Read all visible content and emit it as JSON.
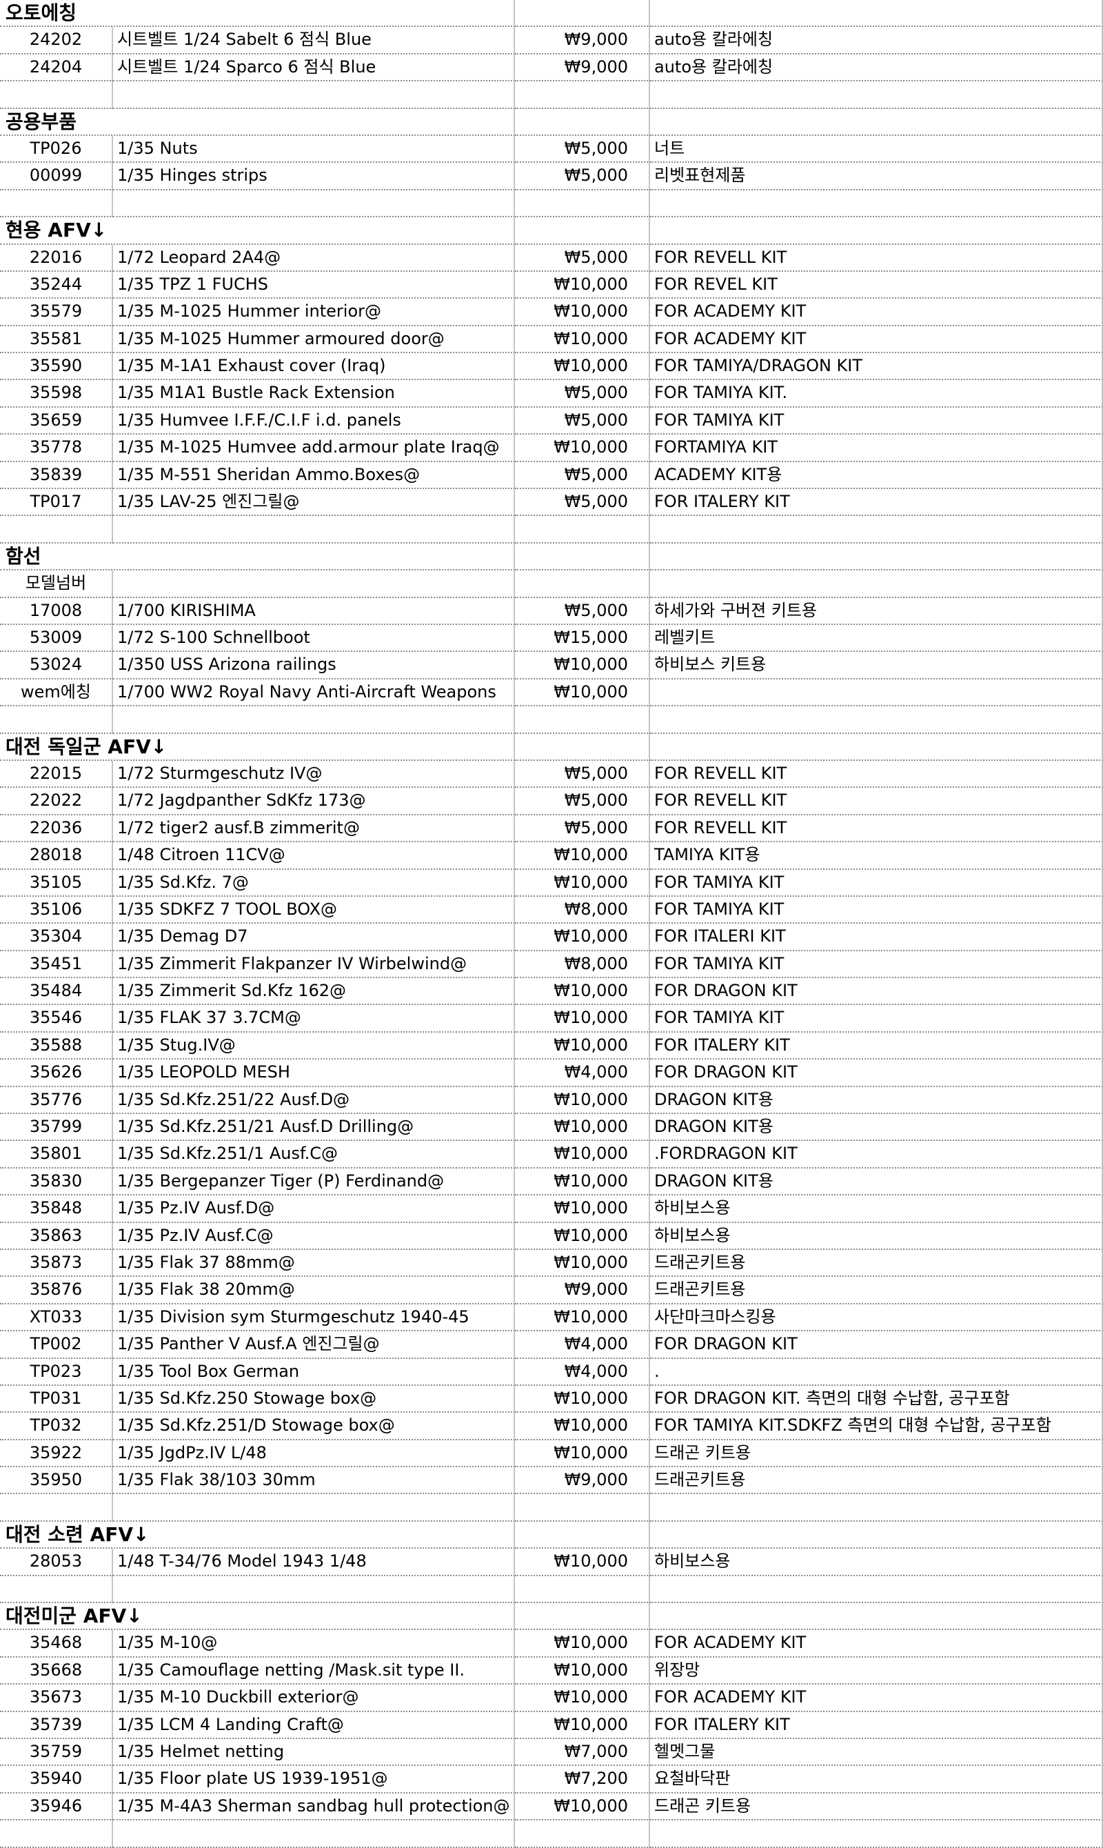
{
  "sections": [
    {
      "title": "오토에칭",
      "items": [
        [
          "24202",
          "시트벨트 1/24 Sabelt 6 점식 Blue",
          "₩9,000",
          "auto용 칼라에칭"
        ],
        [
          "24204",
          "시트벨트 1/24 Sparco 6 점식 Blue",
          "₩9,000",
          "auto용 칼라에칭"
        ]
      ]
    },
    {
      "title": "공용부품",
      "items": [
        [
          "TP026",
          "1/35 Nuts",
          "₩5,000",
          "너트"
        ],
        [
          "00099",
          "1/35 Hinges strips",
          "₩5,000",
          "리벳표현제품"
        ]
      ]
    },
    {
      "title": "현용 AFV↓",
      "items": [
        [
          "22016",
          "1/72 Leopard 2A4@",
          "₩5,000",
          "FOR REVELL KIT"
        ],
        [
          "35244",
          "1/35 TPZ 1 FUCHS",
          "₩10,000",
          "FOR REVEL KIT"
        ],
        [
          "35579",
          "1/35 M-1025 Hummer interior@",
          "₩10,000",
          "FOR ACADEMY KIT"
        ],
        [
          "35581",
          "1/35 M-1025 Hummer armoured door@",
          "₩10,000",
          "FOR ACADEMY KIT"
        ],
        [
          "35590",
          "1/35 M-1A1 Exhaust cover (Iraq)",
          "₩10,000",
          "FOR TAMIYA/DRAGON KIT"
        ],
        [
          "35598",
          "1/35 M1A1 Bustle Rack Extension",
          "₩5,000",
          "FOR TAMIYA KIT."
        ],
        [
          "35659",
          "1/35 Humvee I.F.F./C.I.F i.d. panels",
          "₩5,000",
          "FOR TAMIYA KIT"
        ],
        [
          "35778",
          "1/35 M-1025 Humvee add.armour plate Iraq@",
          "₩10,000",
          "FORTAMIYA KIT"
        ],
        [
          "35839",
          "1/35 M-551 Sheridan Ammo.Boxes@",
          "₩5,000",
          "ACADEMY KIT용"
        ],
        [
          "TP017",
          "1/35 LAV-25 엔진그릴@",
          "₩5,000",
          "FOR ITALERY KIT"
        ]
      ]
    },
    {
      "title": "함선",
      "subtitle": "모델넘버",
      "items": [
        [
          "17008",
          "1/700 KIRISHIMA",
          "₩5,000",
          "하세가와 구버젼 키트용"
        ],
        [
          "53009",
          "1/72 S-100 Schnellboot",
          "₩15,000",
          "레벨키트"
        ],
        [
          "53024",
          "1/350 USS Arizona railings",
          "₩10,000",
          "하비보스 키트용"
        ],
        [
          "wem에칭",
          "1/700 WW2 Royal Navy Anti-Aircraft Weapons",
          "₩10,000"
        ]
      ]
    },
    {
      "title": "대전 독일군 AFV↓",
      "items": [
        [
          "22015",
          "1/72 Sturmgeschutz IV@",
          "₩5,000",
          "FOR REVELL KIT"
        ],
        [
          "22022",
          "1/72 Jagdpanther SdKfz 173@",
          "₩5,000",
          "FOR REVELL KIT"
        ],
        [
          "22036",
          "1/72 tiger2 ausf.B zimmerit@",
          "₩5,000",
          "FOR REVELL KIT"
        ],
        [
          "28018",
          "1/48 Citroen 11CV@",
          "₩10,000",
          "TAMIYA KIT용"
        ],
        [
          "35105",
          "1/35 Sd.Kfz. 7@",
          "₩10,000",
          "FOR TAMIYA KIT"
        ],
        [
          "35106",
          "1/35 SDKFZ 7 TOOL BOX@",
          "₩8,000",
          "FOR TAMIYA KIT"
        ],
        [
          "35304",
          "1/35 Demag D7",
          "₩10,000",
          "FOR ITALERI KIT"
        ],
        [
          "35451",
          "1/35 Zimmerit Flakpanzer IV Wirbelwind@",
          "₩8,000",
          "FOR TAMIYA KIT"
        ],
        [
          "35484",
          "1/35 Zimmerit Sd.Kfz 162@",
          "₩10,000",
          "FOR DRAGON KIT"
        ],
        [
          "35546",
          "1/35 FLAK 37 3.7CM@",
          "₩10,000",
          "FOR TAMIYA KIT"
        ],
        [
          "35588",
          "1/35 Stug.IV@",
          "₩10,000",
          "FOR ITALERY KIT"
        ],
        [
          "35626",
          "1/35 LEOPOLD MESH",
          "₩4,000",
          "FOR DRAGON KIT"
        ],
        [
          "35776",
          "1/35 Sd.Kfz.251/22 Ausf.D@",
          "₩10,000",
          "DRAGON KIT용"
        ],
        [
          "35799",
          "1/35 Sd.Kfz.251/21 Ausf.D Drilling@",
          "₩10,000",
          "DRAGON KIT용"
        ],
        [
          "35801",
          "1/35 Sd.Kfz.251/1 Ausf.C@",
          "₩10,000",
          ".FORDRAGON KIT"
        ],
        [
          "35830",
          "1/35 Bergepanzer Tiger (P) Ferdinand@",
          "₩10,000",
          "DRAGON KIT용"
        ],
        [
          "35848",
          "1/35 Pz.IV Ausf.D@",
          "₩10,000",
          "하비보스용"
        ],
        [
          "35863",
          "1/35 Pz.IV Ausf.C@",
          "₩10,000",
          "하비보스용"
        ],
        [
          "35873",
          "1/35 Flak 37 88mm@",
          "₩10,000",
          "드래곤키트용"
        ],
        [
          "35876",
          "1/35 Flak 38 20mm@",
          "₩9,000",
          "드래곤키트용"
        ],
        [
          "XT033",
          "1/35 Division sym Sturmgeschutz 1940-45",
          "₩10,000",
          "사단마크마스킹용"
        ],
        [
          "TP002",
          "1/35 Panther V Ausf.A 엔진그릴@",
          "₩4,000",
          "FOR DRAGON KIT"
        ],
        [
          "TP023",
          "1/35 Tool Box German",
          "₩4,000",
          "."
        ],
        [
          "TP031",
          "1/35 Sd.Kfz.250 Stowage box@",
          "₩10,000",
          "FOR DRAGON KIT. 측면의 대형 수납함, 공구포함"
        ],
        [
          "TP032",
          "1/35 Sd.Kfz.251/D Stowage box@",
          "₩10,000",
          "FOR TAMIYA KIT.SDKFZ 측면의 대형 수납함, 공구포함"
        ],
        [
          "35922",
          "1/35 JgdPz.IV L/48",
          "₩10,000",
          "드래곤 키트용"
        ],
        [
          "35950",
          "1/35 Flak 38/103 30mm",
          "₩9,000",
          "드래곤키트용"
        ]
      ]
    },
    {
      "title": "대전 소련 AFV↓",
      "items": [
        [
          "28053",
          "1/48 T-34/76 Model 1943  1/48",
          "₩10,000",
          "하비보스용"
        ]
      ]
    },
    {
      "title": "대전미군 AFV↓",
      "items": [
        [
          "35468",
          "1/35 M-10@",
          "₩10,000",
          "FOR ACADEMY KIT"
        ],
        [
          "35668",
          "1/35 Camouflage netting /Mask.sit type II.",
          "₩10,000",
          "위장망"
        ],
        [
          "35673",
          "1/35 M-10 Duckbill exterior@",
          "₩10,000",
          "FOR ACADEMY KIT"
        ],
        [
          "35739",
          "1/35 LCM 4 Landing Craft@",
          "₩10,000",
          "FOR ITALERY KIT"
        ],
        [
          "35759",
          "1/35 Helmet netting",
          "₩7,000",
          "헬멧그물"
        ],
        [
          "35940",
          "1/35 Floor plate US 1939-1951@",
          "₩7,200",
          "요철바닥판"
        ],
        [
          "35946",
          "1/35 M-4A3 Sherman sandbag hull protection@",
          "₩10,000",
          "드래곤 키트용"
        ]
      ]
    }
  ]
}
